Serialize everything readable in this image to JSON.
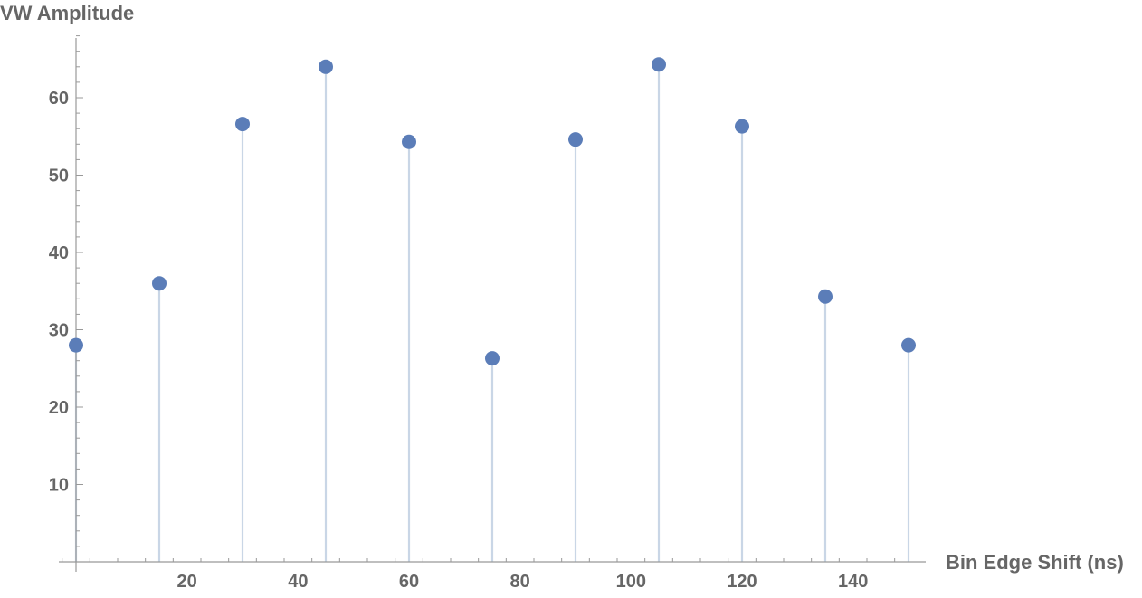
{
  "chart_data": {
    "type": "scatter",
    "style": "stem",
    "title": "",
    "xlabel": "Bin Edge Shift (ns)",
    "ylabel": "VW Amplitude",
    "xlim": [
      0,
      152
    ],
    "ylim": [
      0,
      68
    ],
    "xticks": [
      20,
      40,
      60,
      80,
      100,
      120,
      140
    ],
    "yticks": [
      10,
      20,
      30,
      40,
      50,
      60
    ],
    "grid": false,
    "series": [
      {
        "color": "#5b7db8",
        "stem_color": "#c9d6e6",
        "points": [
          {
            "x": 0,
            "y": 28.0
          },
          {
            "x": 15,
            "y": 36.0
          },
          {
            "x": 30,
            "y": 56.6
          },
          {
            "x": 45,
            "y": 64.0
          },
          {
            "x": 60,
            "y": 54.3
          },
          {
            "x": 75,
            "y": 26.3
          },
          {
            "x": 90,
            "y": 54.6
          },
          {
            "x": 105,
            "y": 64.3
          },
          {
            "x": 120,
            "y": 56.3
          },
          {
            "x": 135,
            "y": 34.3
          },
          {
            "x": 150,
            "y": 28.0
          }
        ]
      }
    ]
  }
}
